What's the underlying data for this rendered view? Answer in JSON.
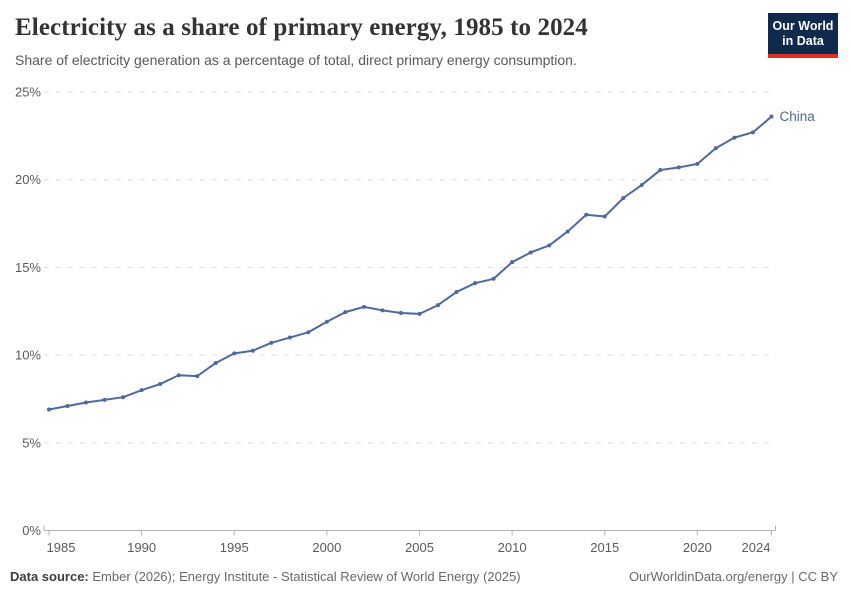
{
  "header": {
    "title": "Electricity as a share of primary energy, 1985 to 2024",
    "subtitle": "Share of electricity generation as a percentage of total, direct primary energy consumption.",
    "logo": {
      "line1": "Our World",
      "line2": "in Data"
    }
  },
  "chart_data": {
    "type": "line",
    "title": "Electricity as a share of primary energy, 1985 to 2024",
    "xlabel": "",
    "ylabel": "",
    "ylim": [
      0,
      25
    ],
    "yticks": [
      0,
      5,
      10,
      15,
      20,
      25
    ],
    "ytick_suffix": "%",
    "xticks": [
      1985,
      1990,
      1995,
      2000,
      2005,
      2010,
      2015,
      2020,
      2024
    ],
    "grid": "horizontal-dashed",
    "legend": "end-of-line-label",
    "series": [
      {
        "name": "China",
        "color": "#4c6a9c",
        "x": [
          1985,
          1986,
          1987,
          1988,
          1989,
          1990,
          1991,
          1992,
          1993,
          1994,
          1995,
          1996,
          1997,
          1998,
          1999,
          2000,
          2001,
          2002,
          2003,
          2004,
          2005,
          2006,
          2007,
          2008,
          2009,
          2010,
          2011,
          2012,
          2013,
          2014,
          2015,
          2016,
          2017,
          2018,
          2019,
          2020,
          2021,
          2022,
          2023,
          2024
        ],
        "values": [
          6.9,
          7.1,
          7.3,
          7.45,
          7.6,
          8.0,
          8.35,
          8.85,
          8.8,
          9.55,
          10.1,
          10.25,
          10.7,
          11.0,
          11.3,
          11.9,
          12.45,
          12.75,
          12.55,
          12.4,
          12.35,
          12.85,
          13.6,
          14.1,
          14.35,
          15.3,
          15.85,
          16.25,
          17.05,
          18.0,
          17.9,
          18.95,
          19.7,
          20.55,
          20.7,
          20.9,
          21.8,
          22.4,
          22.7,
          23.6
        ]
      }
    ]
  },
  "footer": {
    "source_label": "Data source:",
    "source_text": "Ember (2026); Energy Institute - Statistical Review of World Energy (2025)",
    "license_text": "OurWorldinData.org/energy | CC BY"
  },
  "colors": {
    "line": "#4c6a9c",
    "grid": "#dedede",
    "axis": "#b3b3b3",
    "tick_label": "#5b5b5b",
    "title": "#333333",
    "logo_bg": "#102a4e",
    "logo_bar": "#dc3122"
  }
}
